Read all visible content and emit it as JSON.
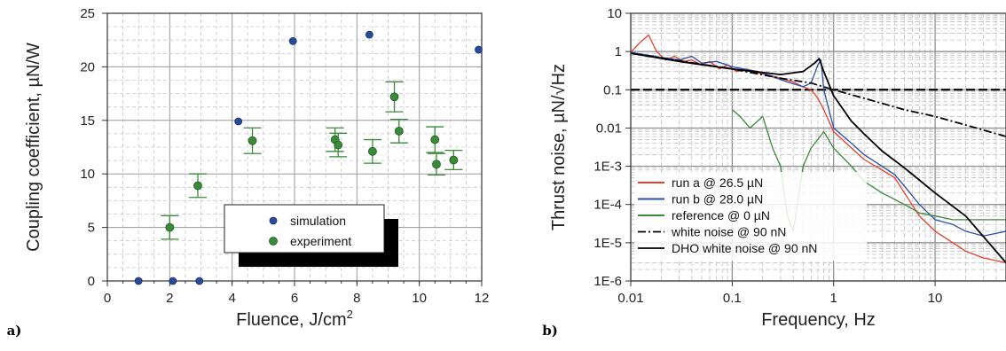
{
  "chart_data": [
    {
      "type": "scatter",
      "panel_label": "a)",
      "xlabel": "Fluence, J/cm",
      "xlabel_sup": "2",
      "ylabel": "Coupling coefficient, µN/W",
      "xlim": [
        0,
        12
      ],
      "ylim": [
        0,
        25
      ],
      "x_ticks": [
        0,
        2,
        4,
        6,
        8,
        10,
        12
      ],
      "y_ticks": [
        0,
        5,
        10,
        15,
        20,
        25
      ],
      "grid": true,
      "legend_position": "lower-right",
      "series": [
        {
          "name": "simulation",
          "color": "#2a4b9c",
          "points": [
            [
              1.0,
              0
            ],
            [
              2.1,
              0
            ],
            [
              2.95,
              0
            ],
            [
              4.2,
              14.9
            ],
            [
              5.95,
              22.4
            ],
            [
              8.4,
              23.0
            ],
            [
              11.9,
              21.6
            ]
          ]
        },
        {
          "name": "experiment",
          "color": "#3a8a3a",
          "points": [
            {
              "x": 2.0,
              "y": 5.0,
              "err": 1.1
            },
            {
              "x": 2.9,
              "y": 8.9,
              "err": 1.1
            },
            {
              "x": 4.65,
              "y": 13.1,
              "err": 1.2
            },
            {
              "x": 7.3,
              "y": 13.2,
              "err": 1.1
            },
            {
              "x": 7.4,
              "y": 12.7,
              "err": 1.1
            },
            {
              "x": 8.5,
              "y": 12.1,
              "err": 1.1
            },
            {
              "x": 9.2,
              "y": 17.2,
              "err": 1.4
            },
            {
              "x": 9.35,
              "y": 14.0,
              "err": 1.1
            },
            {
              "x": 10.5,
              "y": 13.2,
              "err": 1.2
            },
            {
              "x": 10.55,
              "y": 10.9,
              "err": 1.0
            },
            {
              "x": 11.1,
              "y": 11.3,
              "err": 0.9
            }
          ]
        }
      ]
    },
    {
      "type": "line",
      "panel_label": "b)",
      "xlabel": "Frequency, Hz",
      "ylabel": "Thrust noise, µN/√Hz",
      "x_scale": "log",
      "y_scale": "log",
      "xlim": [
        0.01,
        50
      ],
      "ylim": [
        1e-06,
        10
      ],
      "x_tick_labels": [
        "0.01",
        "0.1",
        "1",
        "10"
      ],
      "y_tick_labels": [
        "10",
        "1",
        "0.1",
        "0.01",
        "1E-3",
        "1E-4",
        "1E-5",
        "1E-6"
      ],
      "grid": true,
      "legend_position": "lower-left",
      "series": [
        {
          "name": "run a @ 26.5 µN",
          "color": "#e8402a",
          "points": [
            [
              0.01,
              0.95
            ],
            [
              0.012,
              1.6
            ],
            [
              0.015,
              2.7
            ],
            [
              0.018,
              1.0
            ],
            [
              0.022,
              0.6
            ],
            [
              0.027,
              0.75
            ],
            [
              0.033,
              0.55
            ],
            [
              0.04,
              0.6
            ],
            [
              0.05,
              0.45
            ],
            [
              0.06,
              0.55
            ],
            [
              0.075,
              0.35
            ],
            [
              0.09,
              0.45
            ],
            [
              0.11,
              0.3
            ],
            [
              0.14,
              0.35
            ],
            [
              0.17,
              0.28
            ],
            [
              0.22,
              0.25
            ],
            [
              0.3,
              0.2
            ],
            [
              0.4,
              0.16
            ],
            [
              0.5,
              0.12
            ],
            [
              0.6,
              0.1
            ],
            [
              0.7,
              0.06
            ],
            [
              0.8,
              0.03
            ],
            [
              1.0,
              0.008
            ],
            [
              1.5,
              0.003
            ],
            [
              2,
              0.0015
            ],
            [
              3,
              0.0008
            ],
            [
              4,
              0.0005
            ],
            [
              5,
              0.0002
            ],
            [
              7,
              5e-05
            ],
            [
              10,
              2e-05
            ],
            [
              15,
              1e-05
            ],
            [
              20,
              6e-06
            ],
            [
              30,
              4e-06
            ],
            [
              50,
              3e-06
            ]
          ]
        },
        {
          "name": "run b @ 28.0 µN",
          "color": "#2a4fa8",
          "points": [
            [
              0.01,
              0.95
            ],
            [
              0.015,
              0.8
            ],
            [
              0.02,
              0.7
            ],
            [
              0.03,
              0.6
            ],
            [
              0.04,
              0.75
            ],
            [
              0.05,
              0.5
            ],
            [
              0.07,
              0.55
            ],
            [
              0.1,
              0.4
            ],
            [
              0.13,
              0.35
            ],
            [
              0.18,
              0.3
            ],
            [
              0.25,
              0.22
            ],
            [
              0.35,
              0.16
            ],
            [
              0.5,
              0.12
            ],
            [
              0.6,
              0.15
            ],
            [
              0.7,
              0.45
            ],
            [
              0.75,
              0.6
            ],
            [
              0.8,
              0.1
            ],
            [
              1.0,
              0.01
            ],
            [
              1.5,
              0.004
            ],
            [
              2,
              0.002
            ],
            [
              3,
              0.001
            ],
            [
              4,
              0.0006
            ],
            [
              5,
              0.0003
            ],
            [
              7,
              0.0001
            ],
            [
              10,
              4e-05
            ],
            [
              15,
              3e-05
            ],
            [
              20,
              2e-05
            ],
            [
              30,
              1.5e-05
            ],
            [
              50,
              2e-05
            ]
          ]
        },
        {
          "name": "reference @ 0 µN",
          "color": "#3a8a3a",
          "points": [
            [
              0.1,
              0.03
            ],
            [
              0.12,
              0.02
            ],
            [
              0.15,
              0.01
            ],
            [
              0.2,
              0.02
            ],
            [
              0.25,
              0.003
            ],
            [
              0.3,
              0.001
            ],
            [
              0.35,
              5e-05
            ],
            [
              0.4,
              2e-05
            ],
            [
              0.5,
              0.001
            ],
            [
              0.6,
              0.003
            ],
            [
              0.8,
              0.008
            ],
            [
              1.0,
              0.003
            ],
            [
              1.5,
              0.001
            ],
            [
              2,
              0.0004
            ],
            [
              3,
              0.0002
            ],
            [
              5,
              0.0001
            ],
            [
              7,
              6e-05
            ],
            [
              10,
              5e-05
            ],
            [
              15,
              4e-05
            ],
            [
              20,
              4e-05
            ],
            [
              30,
              4e-05
            ],
            [
              50,
              4e-05
            ]
          ]
        },
        {
          "name": "white noise @ 90 nN",
          "color": "#000000",
          "dash": "dashdot",
          "points": [
            [
              0.01,
              0.9
            ],
            [
              0.1,
              0.35
            ],
            [
              0.3,
              0.2
            ],
            [
              0.6,
              0.15
            ],
            [
              1,
              0.1
            ],
            [
              2,
              0.06
            ],
            [
              5,
              0.03
            ],
            [
              10,
              0.02
            ],
            [
              20,
              0.012
            ],
            [
              50,
              0.006
            ]
          ]
        },
        {
          "name": "DHO white noise @ 90 nN",
          "color": "#000000",
          "points": [
            [
              0.01,
              0.9
            ],
            [
              0.03,
              0.55
            ],
            [
              0.1,
              0.35
            ],
            [
              0.3,
              0.25
            ],
            [
              0.5,
              0.3
            ],
            [
              0.65,
              0.5
            ],
            [
              0.72,
              0.65
            ],
            [
              0.8,
              0.3
            ],
            [
              1,
              0.07
            ],
            [
              1.5,
              0.015
            ],
            [
              2,
              0.007
            ],
            [
              3,
              0.0025
            ],
            [
              5,
              0.0009
            ],
            [
              10,
              0.0002
            ],
            [
              20,
              5e-05
            ],
            [
              50,
              3e-06
            ]
          ]
        }
      ],
      "threshold_line": {
        "y": 0.1,
        "color": "#000000"
      }
    }
  ]
}
